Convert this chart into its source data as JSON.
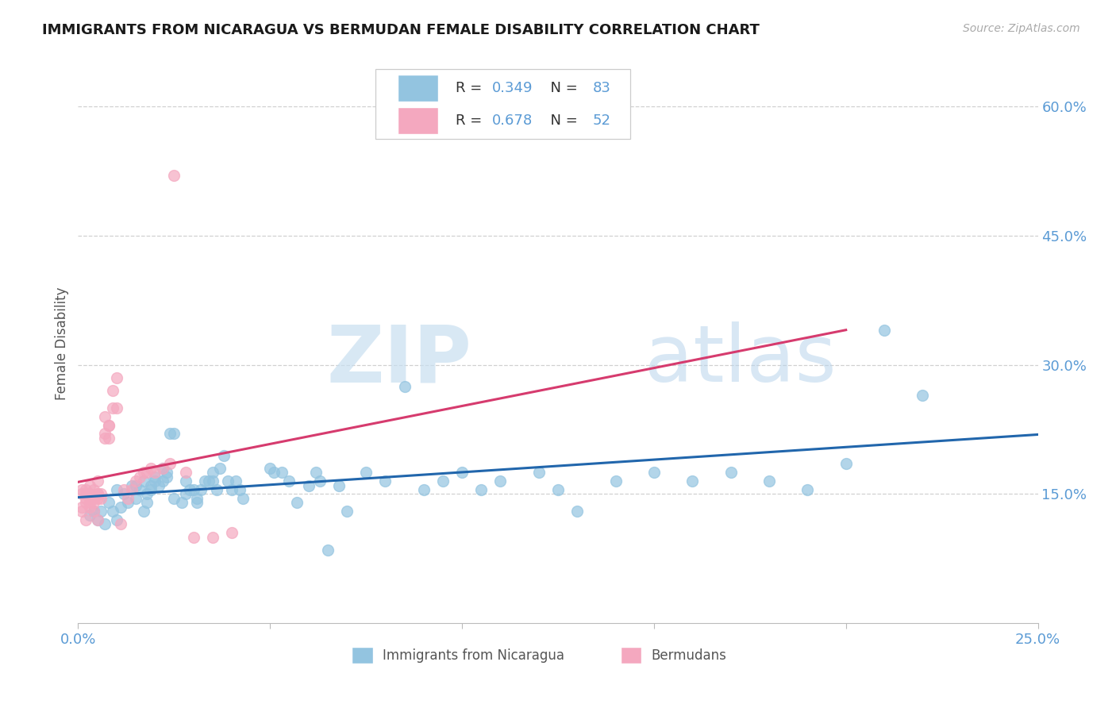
{
  "title": "IMMIGRANTS FROM NICARAGUA VS BERMUDAN FEMALE DISABILITY CORRELATION CHART",
  "source": "Source: ZipAtlas.com",
  "ylabel_label": "Female Disability",
  "legend_label_blue": "Immigrants from Nicaragua",
  "legend_label_pink": "Bermudans",
  "r_blue": 0.349,
  "n_blue": 83,
  "r_pink": 0.678,
  "n_pink": 52,
  "xlim": [
    0.0,
    0.25
  ],
  "ylim": [
    0.0,
    0.65
  ],
  "ytick_positions": [
    0.15,
    0.3,
    0.45,
    0.6
  ],
  "ytick_labels": [
    "15.0%",
    "30.0%",
    "45.0%",
    "60.0%"
  ],
  "xticks": [
    0.0,
    0.05,
    0.1,
    0.15,
    0.2,
    0.25
  ],
  "xtick_labels": [
    "0.0%",
    "",
    "",
    "",
    "",
    "25.0%"
  ],
  "color_blue": "#93c4e0",
  "color_pink": "#f4a8bf",
  "line_color_blue": "#2166ac",
  "line_color_pink": "#d63b6e",
  "bg_color": "#ffffff",
  "scatter_blue_x": [
    0.003,
    0.004,
    0.005,
    0.006,
    0.007,
    0.008,
    0.009,
    0.01,
    0.01,
    0.011,
    0.012,
    0.013,
    0.014,
    0.015,
    0.015,
    0.016,
    0.017,
    0.017,
    0.018,
    0.018,
    0.019,
    0.019,
    0.02,
    0.02,
    0.021,
    0.022,
    0.022,
    0.023,
    0.023,
    0.024,
    0.025,
    0.025,
    0.027,
    0.028,
    0.028,
    0.029,
    0.03,
    0.031,
    0.031,
    0.032,
    0.033,
    0.034,
    0.035,
    0.035,
    0.036,
    0.037,
    0.038,
    0.039,
    0.04,
    0.041,
    0.042,
    0.043,
    0.05,
    0.051,
    0.053,
    0.055,
    0.057,
    0.06,
    0.062,
    0.063,
    0.065,
    0.068,
    0.07,
    0.075,
    0.08,
    0.085,
    0.09,
    0.095,
    0.1,
    0.105,
    0.11,
    0.12,
    0.125,
    0.13,
    0.14,
    0.15,
    0.16,
    0.17,
    0.18,
    0.19,
    0.2,
    0.21,
    0.22
  ],
  "scatter_blue_y": [
    0.125,
    0.13,
    0.12,
    0.13,
    0.115,
    0.14,
    0.13,
    0.12,
    0.155,
    0.135,
    0.15,
    0.14,
    0.16,
    0.145,
    0.16,
    0.155,
    0.165,
    0.13,
    0.14,
    0.15,
    0.16,
    0.155,
    0.17,
    0.165,
    0.16,
    0.165,
    0.18,
    0.175,
    0.17,
    0.22,
    0.22,
    0.145,
    0.14,
    0.15,
    0.165,
    0.155,
    0.155,
    0.145,
    0.14,
    0.155,
    0.165,
    0.165,
    0.175,
    0.165,
    0.155,
    0.18,
    0.195,
    0.165,
    0.155,
    0.165,
    0.155,
    0.145,
    0.18,
    0.175,
    0.175,
    0.165,
    0.14,
    0.16,
    0.175,
    0.165,
    0.085,
    0.16,
    0.13,
    0.175,
    0.165,
    0.275,
    0.155,
    0.165,
    0.175,
    0.155,
    0.165,
    0.175,
    0.155,
    0.13,
    0.165,
    0.175,
    0.165,
    0.175,
    0.165,
    0.155,
    0.185,
    0.34,
    0.265
  ],
  "scatter_pink_x": [
    0.001,
    0.001,
    0.001,
    0.001,
    0.002,
    0.002,
    0.002,
    0.002,
    0.002,
    0.003,
    0.003,
    0.003,
    0.003,
    0.003,
    0.004,
    0.004,
    0.004,
    0.004,
    0.005,
    0.005,
    0.005,
    0.005,
    0.005,
    0.006,
    0.006,
    0.007,
    0.007,
    0.007,
    0.008,
    0.008,
    0.008,
    0.009,
    0.009,
    0.01,
    0.01,
    0.011,
    0.012,
    0.013,
    0.014,
    0.015,
    0.016,
    0.017,
    0.018,
    0.019,
    0.02,
    0.022,
    0.024,
    0.025,
    0.028,
    0.03,
    0.035,
    0.04
  ],
  "scatter_pink_y": [
    0.135,
    0.155,
    0.15,
    0.13,
    0.14,
    0.145,
    0.155,
    0.15,
    0.12,
    0.135,
    0.14,
    0.145,
    0.15,
    0.16,
    0.14,
    0.13,
    0.155,
    0.145,
    0.15,
    0.12,
    0.145,
    0.15,
    0.165,
    0.145,
    0.15,
    0.22,
    0.24,
    0.215,
    0.23,
    0.215,
    0.23,
    0.25,
    0.27,
    0.285,
    0.25,
    0.115,
    0.155,
    0.145,
    0.155,
    0.165,
    0.17,
    0.175,
    0.175,
    0.18,
    0.175,
    0.18,
    0.185,
    0.52,
    0.175,
    0.1,
    0.1,
    0.105
  ]
}
